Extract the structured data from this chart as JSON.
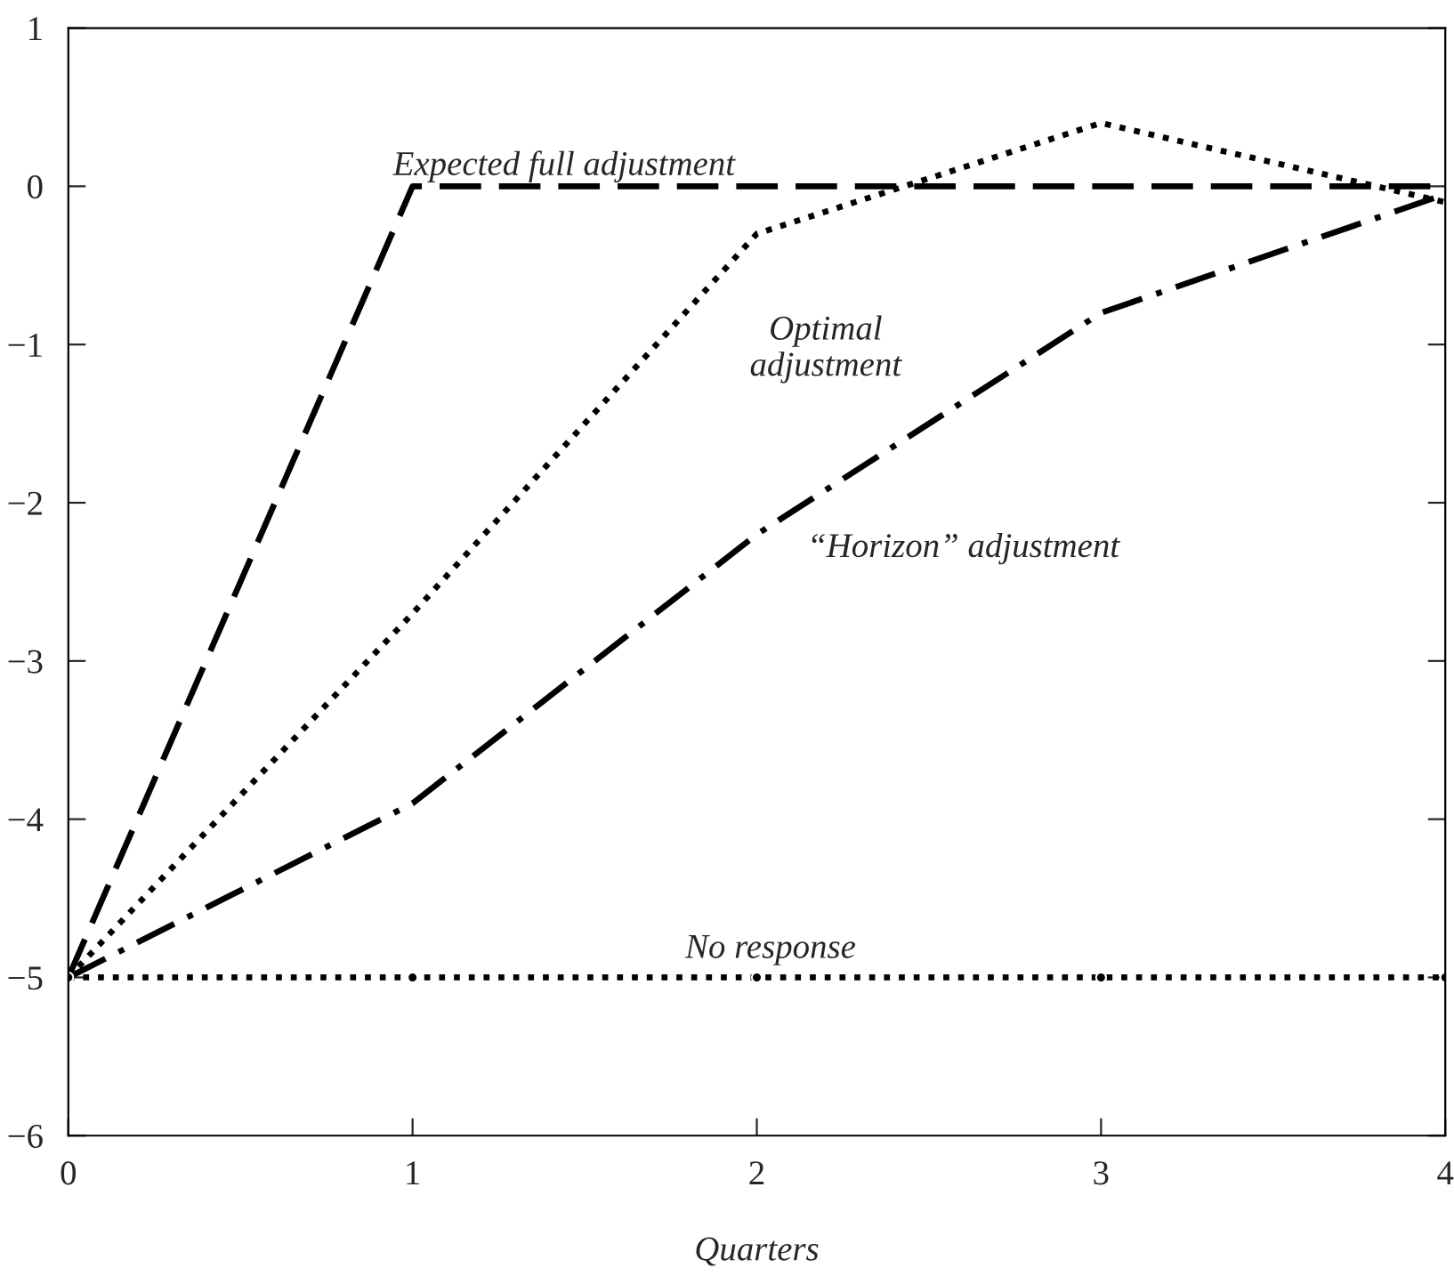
{
  "chart_data": {
    "type": "line",
    "xlabel": "Quarters",
    "x": [
      0,
      1,
      2,
      3,
      4
    ],
    "series": [
      {
        "name": "Expected full adjustment",
        "color": "#000000",
        "line_style": "dashed",
        "values": [
          -5,
          0,
          0,
          0,
          0
        ]
      },
      {
        "name": "Optimal\nadjustment",
        "color": "#000000",
        "line_style": "dotted",
        "values": [
          -5,
          -2.7,
          -0.3,
          0.4,
          -0.1
        ]
      },
      {
        "name": "“Horizon” adjustment",
        "color": "#000000",
        "line_style": "dashdot",
        "values": [
          -5,
          -3.9,
          -2.2,
          -0.8,
          -0.05
        ]
      },
      {
        "name": "No response",
        "color": "#000000",
        "line_style": "dotted",
        "marker": "circle",
        "values": [
          -5,
          -5,
          -5,
          -5,
          -5
        ]
      }
    ],
    "xlim": [
      0,
      4
    ],
    "xticks": [
      0,
      1,
      2,
      3,
      4
    ],
    "ylim": [
      -6,
      1
    ],
    "yticks": [
      {
        "value": -6,
        "label": "−6"
      },
      {
        "value": -5,
        "label": "−5"
      },
      {
        "value": -4,
        "label": "−4"
      },
      {
        "value": -3,
        "label": "−3"
      },
      {
        "value": -2,
        "label": "−2"
      },
      {
        "value": -1,
        "label": "−1"
      },
      0,
      1
    ],
    "grid": false,
    "legend": false
  }
}
